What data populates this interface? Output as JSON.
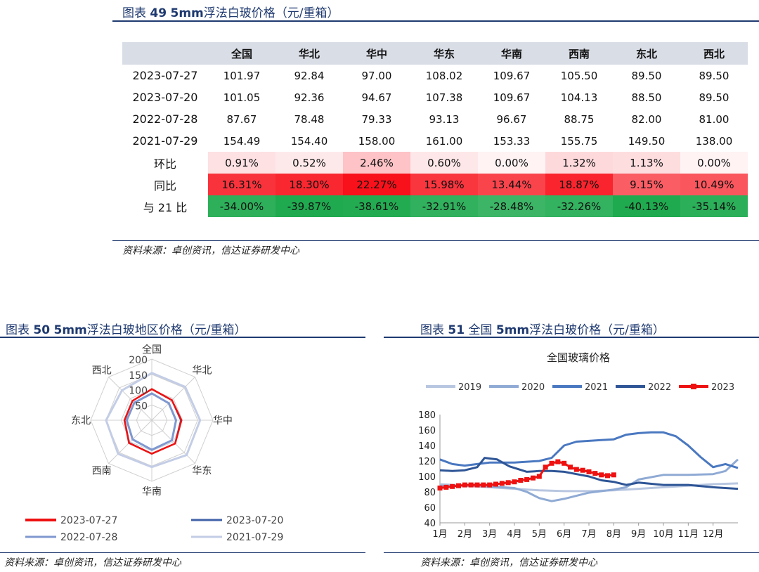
{
  "figure49": {
    "title_prefix": "图表",
    "title_num": "49",
    "title_bold": "5mm",
    "title_rest": "浮法白玻价格（元/重箱）",
    "source": "资料来源：卓创资讯，信达证券研发中心"
  },
  "figure50": {
    "title_prefix": "图表",
    "title_num": "50",
    "title_bold": "5mm",
    "title_rest": "浮法白玻地区价格（元/重箱）",
    "source": "资料来源：卓创资讯，信达证券研发中心"
  },
  "figure51": {
    "title_prefix": "图表",
    "title_num": "51",
    "title_mid": "全国",
    "title_bold": "5mm",
    "title_rest": "浮法白玻价格（元/重箱）",
    "source": "资料来源：卓创资讯，信达证券研发中心"
  },
  "colors": {
    "heading": "#1f3a70",
    "red_strong": "#f8101a",
    "green": "#1faa4f",
    "line2019": "#b8c6e0",
    "line2020": "#8faad4",
    "line2021": "#4a78c0",
    "line2022": "#2e5596",
    "line2023": "#ee1111"
  },
  "chart_data": [
    {
      "type": "table",
      "columns": [
        "全国",
        "华北",
        "华中",
        "华东",
        "华南",
        "西南",
        "东北",
        "西北"
      ],
      "rows": [
        {
          "label": "2023-07-27",
          "values": [
            "101.97",
            "92.84",
            "97.00",
            "108.02",
            "109.67",
            "105.50",
            "89.50",
            "89.50"
          ]
        },
        {
          "label": "2023-07-20",
          "values": [
            "101.05",
            "92.36",
            "94.67",
            "107.38",
            "109.67",
            "104.13",
            "88.50",
            "89.50"
          ]
        },
        {
          "label": "2022-07-28",
          "values": [
            "87.67",
            "78.48",
            "79.33",
            "93.13",
            "96.67",
            "88.75",
            "82.00",
            "81.00"
          ]
        },
        {
          "label": "2021-07-29",
          "values": [
            "154.49",
            "154.40",
            "158.00",
            "161.00",
            "153.33",
            "155.75",
            "149.50",
            "138.00"
          ]
        }
      ],
      "ratio_rows": [
        {
          "label": "环比",
          "values": [
            "0.91%",
            "0.52%",
            "2.46%",
            "0.60%",
            "0.00%",
            "1.32%",
            "1.13%",
            "0.00%"
          ],
          "numbers": [
            0.91,
            0.52,
            2.46,
            0.6,
            0.0,
            1.32,
            1.13,
            0.0
          ]
        },
        {
          "label": "同比",
          "values": [
            "16.31%",
            "18.30%",
            "22.27%",
            "15.98%",
            "13.44%",
            "18.87%",
            "9.15%",
            "10.49%"
          ],
          "numbers": [
            16.31,
            18.3,
            22.27,
            15.98,
            13.44,
            18.87,
            9.15,
            10.49
          ]
        },
        {
          "label": "与 21 比",
          "values": [
            "-34.00%",
            "-39.87%",
            "-38.61%",
            "-32.91%",
            "-28.48%",
            "-32.26%",
            "-40.13%",
            "-35.14%"
          ],
          "numbers": [
            -34.0,
            -39.87,
            -38.61,
            -32.91,
            -28.48,
            -32.26,
            -40.13,
            -35.14
          ]
        }
      ]
    },
    {
      "type": "radar",
      "axes": [
        "全国",
        "华北",
        "华中",
        "华东",
        "华南",
        "西南",
        "东北",
        "西北"
      ],
      "range": [
        0,
        200
      ],
      "ticks": [
        "200",
        "150",
        "100",
        "50"
      ],
      "tick_values": [
        200,
        150,
        100,
        50
      ],
      "series": [
        {
          "name": "2023-07-27",
          "color": "#ee1111",
          "values": [
            101.97,
            92.84,
            97.0,
            108.02,
            109.67,
            105.5,
            89.5,
            89.5
          ]
        },
        {
          "name": "2023-07-20",
          "color": "#3f62a8",
          "values": [
            101.05,
            92.36,
            94.67,
            107.38,
            109.67,
            104.13,
            88.5,
            89.5
          ]
        },
        {
          "name": "2022-07-28",
          "color": "#7f98cf",
          "values": [
            87.67,
            78.48,
            79.33,
            93.13,
            96.67,
            88.75,
            82.0,
            81.0
          ]
        },
        {
          "name": "2021-07-29",
          "color": "#c3cde6",
          "values": [
            154.49,
            154.4,
            158.0,
            161.0,
            153.33,
            155.75,
            149.5,
            138.0
          ]
        }
      ]
    },
    {
      "type": "line",
      "title": "全国玻璃价格",
      "x_ticks": [
        "1月",
        "2月",
        "3月",
        "4月",
        "5月",
        "6月",
        "7月",
        "8月",
        "9月",
        "10月",
        "11月",
        "12月"
      ],
      "x_range": [
        0,
        12
      ],
      "ylim": [
        40,
        180
      ],
      "y_ticks": [
        "40",
        "60",
        "80",
        "100",
        "120",
        "140",
        "160",
        "180"
      ],
      "y_tick_values": [
        40,
        60,
        80,
        100,
        120,
        140,
        160,
        180
      ],
      "series": [
        {
          "name": "2019",
          "color": "#b8c6e0",
          "x": [
            0,
            1,
            2,
            3,
            4,
            5,
            6,
            7,
            8,
            9,
            10,
            11,
            12
          ],
          "y": [
            90,
            88,
            86,
            84,
            82,
            81,
            81,
            82,
            84,
            86,
            88,
            90,
            91
          ]
        },
        {
          "name": "2020",
          "color": "#8faad4",
          "x": [
            0,
            1,
            2,
            3,
            3.5,
            4,
            4.5,
            5,
            6,
            7,
            7.5,
            8,
            9,
            10,
            11,
            11.5,
            12
          ],
          "y": [
            88,
            88,
            87,
            85,
            80,
            72,
            68,
            71,
            79,
            83,
            86,
            96,
            102,
            102,
            103,
            107,
            122
          ]
        },
        {
          "name": "2021",
          "color": "#4a78c0",
          "x": [
            0,
            0.5,
            1,
            1.5,
            2,
            2.5,
            3,
            4,
            4.5,
            5,
            5.5,
            6,
            6.5,
            7,
            7.5,
            8,
            8.5,
            9,
            9.5,
            10,
            10.5,
            11,
            11.5,
            12
          ],
          "y": [
            122,
            116,
            114,
            116,
            118,
            118,
            118,
            120,
            124,
            140,
            145,
            146,
            147,
            148,
            154,
            156,
            157,
            157,
            152,
            140,
            125,
            112,
            116,
            111
          ]
        },
        {
          "name": "2022",
          "color": "#2e5596",
          "x": [
            0,
            0.5,
            1,
            1.5,
            1.8,
            2.3,
            2.8,
            3.5,
            4,
            4.5,
            5,
            5.5,
            6,
            6.5,
            7,
            7.5,
            8,
            9,
            10,
            11,
            12
          ],
          "y": [
            108,
            107,
            108,
            112,
            124,
            122,
            113,
            106,
            107,
            107,
            106,
            103,
            100,
            95,
            93,
            89,
            92,
            89,
            89,
            86,
            84
          ]
        },
        {
          "name": "2023",
          "color": "#ee1111",
          "x": [
            0,
            0.25,
            0.5,
            0.75,
            1,
            1.25,
            1.5,
            1.75,
            2,
            2.25,
            2.5,
            2.75,
            3,
            3.25,
            3.5,
            3.75,
            4,
            4.25,
            4.5,
            4.75,
            5,
            5.25,
            5.5,
            5.75,
            6,
            6.25,
            6.5,
            6.75,
            7
          ],
          "y": [
            85,
            86,
            87,
            88,
            89,
            89,
            89,
            89,
            89,
            90,
            91,
            92,
            93,
            95,
            96,
            98,
            100,
            112,
            117,
            119,
            117,
            112,
            109,
            108,
            106,
            104,
            102,
            101,
            102
          ]
        }
      ]
    }
  ]
}
